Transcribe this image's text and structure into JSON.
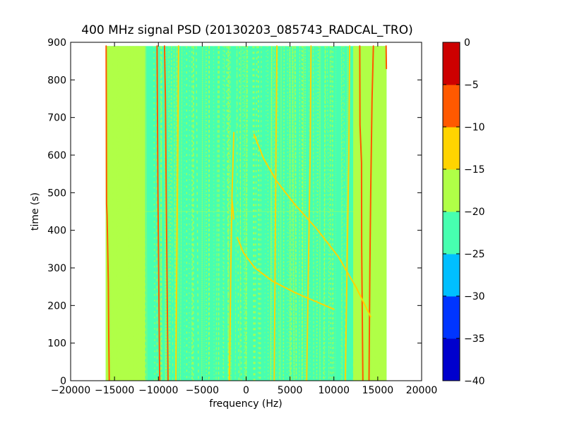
{
  "chart_data": {
    "type": "heatmap",
    "title": "400 MHz signal PSD (20130203_085743_RADCAL_TRO)",
    "xlabel": "frequency (Hz)",
    "ylabel": "time (s)",
    "xlim": [
      -20000,
      20000
    ],
    "ylim": [
      0,
      900
    ],
    "xticks": [
      -20000,
      -15000,
      -10000,
      -5000,
      0,
      5000,
      10000,
      15000,
      20000
    ],
    "xtick_labels": [
      "−20000",
      "−15000",
      "−10000",
      "−5000",
      "0",
      "5000",
      "10000",
      "15000",
      "20000"
    ],
    "yticks": [
      0,
      100,
      200,
      300,
      400,
      500,
      600,
      700,
      800,
      900
    ],
    "ytick_labels": [
      "0",
      "100",
      "200",
      "300",
      "400",
      "500",
      "600",
      "700",
      "800",
      "900"
    ],
    "data_extent": {
      "freq": [
        -16000,
        16000
      ],
      "time": [
        0,
        890
      ]
    },
    "grid": false,
    "colorbar": {
      "levels": [
        0,
        -5,
        -10,
        -15,
        -20,
        -25,
        -30,
        -35,
        -40
      ],
      "tick_labels": [
        "0",
        "−5",
        "−10",
        "−15",
        "−20",
        "−25",
        "−30",
        "−35",
        "−40"
      ],
      "colors": [
        "#0000cd",
        "#0035ff",
        "#00bfff",
        "#47ffb0",
        "#b0ff47",
        "#ffd400",
        "#ff5900",
        "#cd0000"
      ]
    },
    "background": {
      "level_color": "#47ffb0",
      "edge_band_color": "#b0ff47",
      "edge_bands": [
        [
          -16000,
          -11500
        ],
        [
          12200,
          16000
        ]
      ]
    },
    "spectral_lines": [
      {
        "name": "carrier-left-outer",
        "color": "#ff5900",
        "points": [
          [
            -15950,
            890
          ],
          [
            -15900,
            470
          ],
          [
            -15850,
            440
          ],
          [
            -15700,
            260
          ],
          [
            -15650,
            120
          ],
          [
            -15600,
            0
          ]
        ]
      },
      {
        "name": "carrier-left-a",
        "color": "#ff5900",
        "points": [
          [
            -10150,
            890
          ],
          [
            -10050,
            500
          ],
          [
            -9950,
            250
          ],
          [
            -9850,
            0
          ]
        ]
      },
      {
        "name": "carrier-left-b",
        "color": "#ff5900",
        "points": [
          [
            -9300,
            890
          ],
          [
            -9200,
            750
          ],
          [
            -9100,
            500
          ],
          [
            -9000,
            240
          ],
          [
            -8900,
            0
          ]
        ]
      },
      {
        "name": "carrier-right-a",
        "color": "#ff5900",
        "points": [
          [
            12950,
            890
          ],
          [
            12970,
            680
          ],
          [
            13150,
            580
          ],
          [
            13170,
            360
          ],
          [
            13300,
            0
          ]
        ]
      },
      {
        "name": "carrier-right-b",
        "color": "#ff5900",
        "points": [
          [
            14500,
            890
          ],
          [
            14350,
            750
          ],
          [
            14200,
            500
          ],
          [
            14100,
            300
          ],
          [
            14000,
            0
          ]
        ]
      },
      {
        "name": "carrier-right-outer",
        "color": "#ff5900",
        "points": [
          [
            15950,
            890
          ],
          [
            15980,
            830
          ]
        ]
      },
      {
        "name": "chirp-upper",
        "color": "#ffd400",
        "points": [
          [
            900,
            655
          ],
          [
            2000,
            590
          ],
          [
            3500,
            530
          ],
          [
            5500,
            470
          ],
          [
            8000,
            405
          ],
          [
            10500,
            330
          ],
          [
            12500,
            250
          ],
          [
            14200,
            170
          ]
        ]
      },
      {
        "name": "chirp-lower",
        "color": "#ffd400",
        "points": [
          [
            -1000,
            380
          ],
          [
            -300,
            340
          ],
          [
            1000,
            300
          ],
          [
            3000,
            265
          ],
          [
            5500,
            235
          ],
          [
            8000,
            210
          ],
          [
            10000,
            190
          ]
        ]
      },
      {
        "name": "drift-center",
        "color": "#ffd400",
        "points": [
          [
            -1400,
            660
          ],
          [
            -1600,
            500
          ],
          [
            -1750,
            300
          ],
          [
            -1900,
            0
          ]
        ]
      },
      {
        "name": "drift-center-hook",
        "color": "#ffd400",
        "points": [
          [
            -1600,
            480
          ],
          [
            -1400,
            430
          ]
        ]
      },
      {
        "name": "drift-right",
        "color": "#ffd400",
        "points": [
          [
            7400,
            890
          ],
          [
            7300,
            600
          ],
          [
            7100,
            300
          ],
          [
            6900,
            0
          ]
        ]
      },
      {
        "name": "drift-right-2",
        "color": "#ffd400",
        "points": [
          [
            11800,
            890
          ],
          [
            11700,
            600
          ],
          [
            11500,
            300
          ],
          [
            11300,
            0
          ]
        ]
      },
      {
        "name": "drift-left",
        "color": "#ffd400",
        "points": [
          [
            -7700,
            890
          ],
          [
            -7800,
            600
          ],
          [
            -7900,
            300
          ],
          [
            -8000,
            0
          ]
        ]
      },
      {
        "name": "drift-mid",
        "color": "#ffd400",
        "points": [
          [
            3500,
            890
          ],
          [
            3400,
            600
          ],
          [
            3300,
            300
          ],
          [
            3200,
            0
          ]
        ]
      }
    ],
    "noise_streaks": {
      "color": "#b0ff47",
      "count": 140
    }
  }
}
